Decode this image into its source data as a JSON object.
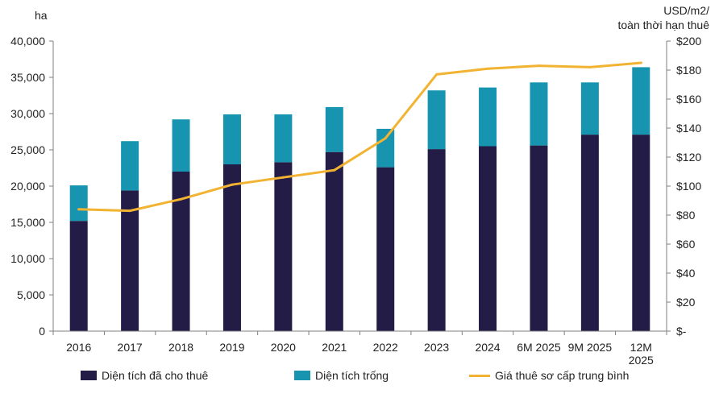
{
  "chart_data": {
    "type": "bar",
    "stacked": true,
    "categories": [
      "2016",
      "2017",
      "2018",
      "2019",
      "2020",
      "2021",
      "2022",
      "2023",
      "2024",
      "6M 2025",
      "9M 2025",
      "12M 2025"
    ],
    "category_lines": [
      [
        "2016"
      ],
      [
        "2017"
      ],
      [
        "2018"
      ],
      [
        "2019"
      ],
      [
        "2020"
      ],
      [
        "2021"
      ],
      [
        "2022"
      ],
      [
        "2023"
      ],
      [
        "2024"
      ],
      [
        "6M 2025"
      ],
      [
        "9M 2025"
      ],
      [
        "12M",
        "2025"
      ]
    ],
    "series": [
      {
        "name": "Diện tích đã cho thuê",
        "kind": "bar",
        "axis": "left",
        "color": "#221C46",
        "values": [
          15200,
          19400,
          22000,
          23000,
          23300,
          24700,
          22600,
          25100,
          25500,
          25600,
          27100,
          27100
        ]
      },
      {
        "name": "Diện tích trống",
        "kind": "bar",
        "axis": "left",
        "color": "#1795B0",
        "values": [
          4900,
          6800,
          7200,
          6900,
          6600,
          6200,
          5300,
          8100,
          8100,
          8700,
          7200,
          9300
        ]
      },
      {
        "name": "Giá thuê sơ cấp trung bình",
        "kind": "line",
        "axis": "right",
        "color": "#F2B332",
        "values": [
          84,
          83,
          91,
          101,
          106,
          111,
          133,
          177,
          181,
          183,
          182,
          185
        ]
      }
    ],
    "left_axis": {
      "label": "ha",
      "min": 0,
      "max": 40000,
      "ticks": [
        "0",
        "5,000",
        "10,000",
        "15,000",
        "20,000",
        "25,000",
        "30,000",
        "35,000",
        "40,000"
      ]
    },
    "right_axis": {
      "label_lines": [
        "USD/m2/",
        "toàn thời hạn thuê"
      ],
      "min": 0,
      "max": 200,
      "ticks": [
        "$-",
        "$20",
        "$40",
        "$60",
        "$80",
        "$100",
        "$120",
        "$140",
        "$160",
        "$180",
        "$200"
      ]
    },
    "grid": false,
    "legend_position": "bottom"
  }
}
